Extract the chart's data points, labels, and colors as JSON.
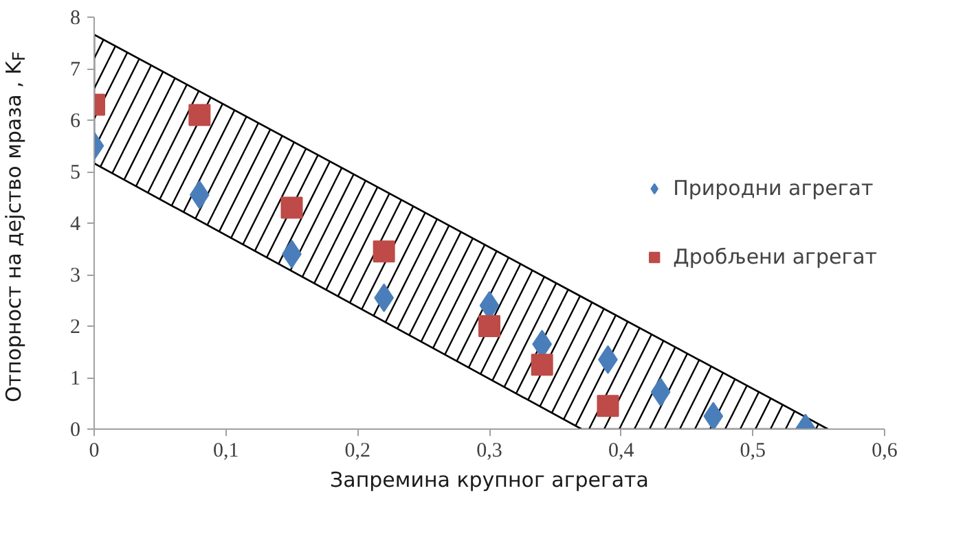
{
  "chart_data": {
    "type": "scatter",
    "xlabel": "Запремина крупног агрегата",
    "ylabel": "Отпорност на дејство мраза , K$_{F}$",
    "xlim": [
      0,
      0.6
    ],
    "ylim": [
      0,
      8
    ],
    "xticks": [
      0,
      {
        "value": 0.1,
        "label": "0,1"
      },
      {
        "value": 0.2,
        "label": "0,2"
      },
      {
        "value": 0.3,
        "label": "0,3"
      },
      {
        "value": 0.4,
        "label": "0,4"
      },
      {
        "value": 0.5,
        "label": "0,5"
      },
      {
        "value": 0.6,
        "label": "0,6"
      }
    ],
    "yticks": [
      0,
      1,
      2,
      3,
      4,
      5,
      6,
      7,
      8
    ],
    "grid": false,
    "legend": "right",
    "series": [
      {
        "type": "area",
        "color": "#000000",
        "x": [
          0,
          0.37,
          0.557
        ],
        "values": [
          null,
          null,
          null
        ],
        "lower": [
          5.16,
          0,
          0
        ],
        "upper": [
          7.66,
          2.57,
          0
        ]
      },
      {
        "name": "Природни агрегат",
        "color": "#4a7ebb",
        "marker": "diamond",
        "x": [
          0,
          0.08,
          0.15,
          0.22,
          0.3,
          0.34,
          0.39,
          0.43,
          0.47,
          0.54
        ],
        "values": [
          5.5,
          4.55,
          3.4,
          2.55,
          2.4,
          1.65,
          1.35,
          0.72,
          0.25,
          0.02
        ]
      },
      {
        "name": "Дробљени агрегат",
        "color": "#be4b48",
        "marker": "square",
        "x": [
          0,
          0.08,
          0.15,
          0.22,
          0.3,
          0.34,
          0.39
        ],
        "values": [
          6.3,
          6.1,
          4.3,
          3.45,
          2.0,
          1.25,
          0.45
        ]
      }
    ]
  }
}
